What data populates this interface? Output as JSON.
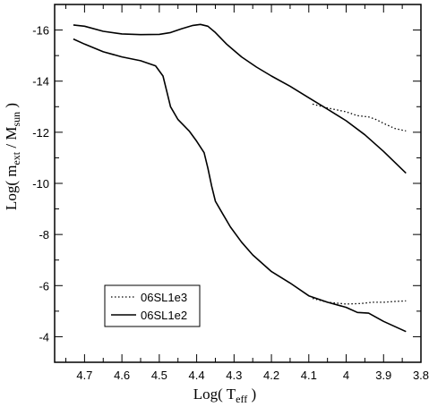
{
  "chart_data": {
    "type": "line",
    "xlabel": {
      "main": "Log( T",
      "sub": "eff",
      "tail": " )"
    },
    "ylabel": {
      "main": "Log( m",
      "sub1": "ext",
      "mid": " / M",
      "sub2": "sun",
      "tail": " )"
    },
    "xlim": [
      4.78,
      3.8
    ],
    "ylim": [
      -3,
      -17
    ],
    "x_ticks": [
      "4.7",
      "4.6",
      "4.5",
      "4.4",
      "4.3",
      "4.2",
      "4.1",
      "4",
      "3.9",
      "3.8"
    ],
    "x_tick_values": [
      4.7,
      4.6,
      4.5,
      4.4,
      4.3,
      4.2,
      4.1,
      4.0,
      3.9,
      3.8
    ],
    "y_ticks": [
      "-16",
      "-14",
      "-12",
      "-10",
      "-8",
      "-6",
      "-4"
    ],
    "y_tick_values": [
      -16,
      -14,
      -12,
      -10,
      -8,
      -6,
      -4
    ],
    "legend": {
      "position": "bottom-left",
      "entries": [
        "06SL1e3",
        "06SL1e2"
      ]
    },
    "series": [
      {
        "name": "06SL1e3",
        "style": "dotted",
        "curves": [
          [
            [
              4.09,
              -13.1
            ],
            [
              4.05,
              -12.95
            ],
            [
              4.0,
              -12.8
            ],
            [
              3.97,
              -12.65
            ],
            [
              3.94,
              -12.6
            ],
            [
              3.92,
              -12.5
            ],
            [
              3.9,
              -12.35
            ],
            [
              3.87,
              -12.15
            ],
            [
              3.84,
              -12.05
            ]
          ],
          [
            [
              4.09,
              -5.5
            ],
            [
              4.05,
              -5.35
            ],
            [
              4.0,
              -5.28
            ],
            [
              3.96,
              -5.3
            ],
            [
              3.93,
              -5.35
            ],
            [
              3.9,
              -5.35
            ],
            [
              3.87,
              -5.38
            ],
            [
              3.84,
              -5.4
            ]
          ]
        ]
      },
      {
        "name": "06SL1e2",
        "style": "solid",
        "curves": [
          [
            [
              4.73,
              -16.2
            ],
            [
              4.7,
              -16.15
            ],
            [
              4.65,
              -15.95
            ],
            [
              4.6,
              -15.85
            ],
            [
              4.55,
              -15.82
            ],
            [
              4.5,
              -15.83
            ],
            [
              4.47,
              -15.9
            ],
            [
              4.44,
              -16.05
            ],
            [
              4.41,
              -16.18
            ],
            [
              4.39,
              -16.22
            ],
            [
              4.37,
              -16.15
            ],
            [
              4.35,
              -15.9
            ],
            [
              4.32,
              -15.45
            ],
            [
              4.28,
              -14.95
            ],
            [
              4.24,
              -14.55
            ],
            [
              4.2,
              -14.2
            ],
            [
              4.15,
              -13.8
            ],
            [
              4.1,
              -13.35
            ],
            [
              4.05,
              -12.9
            ],
            [
              4.0,
              -12.45
            ],
            [
              3.95,
              -11.9
            ],
            [
              3.9,
              -11.25
            ],
            [
              3.84,
              -10.4
            ]
          ],
          [
            [
              4.73,
              -15.65
            ],
            [
              4.7,
              -15.45
            ],
            [
              4.65,
              -15.15
            ],
            [
              4.6,
              -14.95
            ],
            [
              4.55,
              -14.8
            ],
            [
              4.51,
              -14.6
            ],
            [
              4.49,
              -14.2
            ],
            [
              4.48,
              -13.6
            ],
            [
              4.47,
              -13.0
            ],
            [
              4.45,
              -12.5
            ],
            [
              4.42,
              -12.05
            ],
            [
              4.4,
              -11.65
            ],
            [
              4.38,
              -11.2
            ],
            [
              4.37,
              -10.6
            ],
            [
              4.36,
              -9.9
            ],
            [
              4.35,
              -9.3
            ],
            [
              4.33,
              -8.8
            ],
            [
              4.31,
              -8.3
            ],
            [
              4.28,
              -7.7
            ],
            [
              4.25,
              -7.2
            ],
            [
              4.2,
              -6.55
            ],
            [
              4.15,
              -6.1
            ],
            [
              4.1,
              -5.6
            ],
            [
              4.05,
              -5.35
            ],
            [
              4.0,
              -5.15
            ],
            [
              3.97,
              -4.95
            ],
            [
              3.94,
              -4.92
            ],
            [
              3.9,
              -4.6
            ],
            [
              3.84,
              -4.2
            ]
          ]
        ]
      }
    ]
  }
}
